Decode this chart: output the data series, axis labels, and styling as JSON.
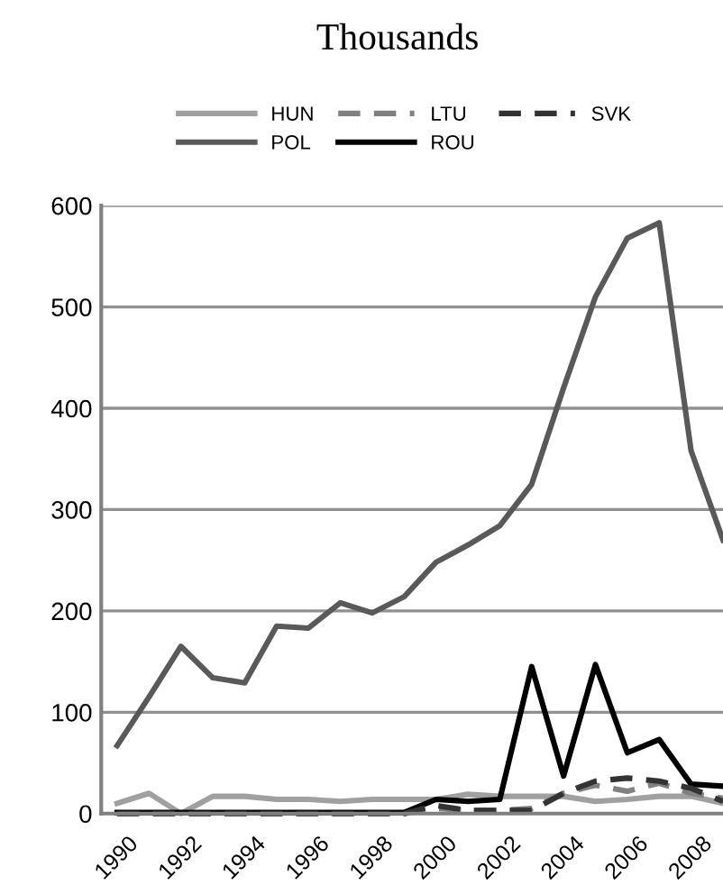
{
  "chart_data": {
    "type": "line",
    "title": "Thousands",
    "categories": [
      "1990",
      null,
      "1992",
      null,
      "1994",
      null,
      "1996",
      null,
      "1998",
      null,
      "2000",
      null,
      "2002",
      null,
      "2004",
      null,
      "2006",
      null,
      "2008",
      null
    ],
    "series": [
      {
        "name": "HUN",
        "color": "#a0a0a0",
        "line_style": "solid",
        "values": [
          10,
          20,
          0,
          17,
          17,
          14,
          14,
          12,
          14,
          14,
          14,
          19,
          17,
          17,
          17,
          12,
          14,
          17,
          17,
          10
        ]
      },
      {
        "name": "POL",
        "color": "#595959",
        "line_style": "solid",
        "values": [
          67,
          115,
          165,
          134,
          129,
          185,
          183,
          208,
          198,
          214,
          248,
          265,
          284,
          325,
          420,
          510,
          568,
          583,
          358,
          270
        ]
      },
      {
        "name": "LTU",
        "color": "#808080",
        "line_style": "dashed",
        "values": [
          0,
          0,
          0,
          0,
          0,
          0,
          0,
          0,
          0,
          0,
          5,
          3,
          3,
          5,
          20,
          28,
          22,
          30,
          20,
          15
        ]
      },
      {
        "name": "ROU",
        "color": "#000000",
        "line_style": "solid",
        "values": [
          1,
          1,
          1,
          1,
          1,
          1,
          1,
          1,
          1,
          1,
          14,
          12,
          14,
          145,
          37,
          147,
          60,
          73,
          29,
          27
        ]
      },
      {
        "name": "SVK",
        "color": "#333333",
        "line_style": "dashed",
        "values": [
          0,
          0,
          0,
          0,
          0,
          0,
          0,
          0,
          0,
          0,
          8,
          3,
          3,
          3,
          20,
          32,
          35,
          32,
          25,
          12
        ]
      }
    ],
    "ylim": [
      0,
      600
    ],
    "yticks": [
      0,
      100,
      200,
      300,
      400,
      500,
      600
    ],
    "grid": "y",
    "legend": "top",
    "marker": "none"
  }
}
